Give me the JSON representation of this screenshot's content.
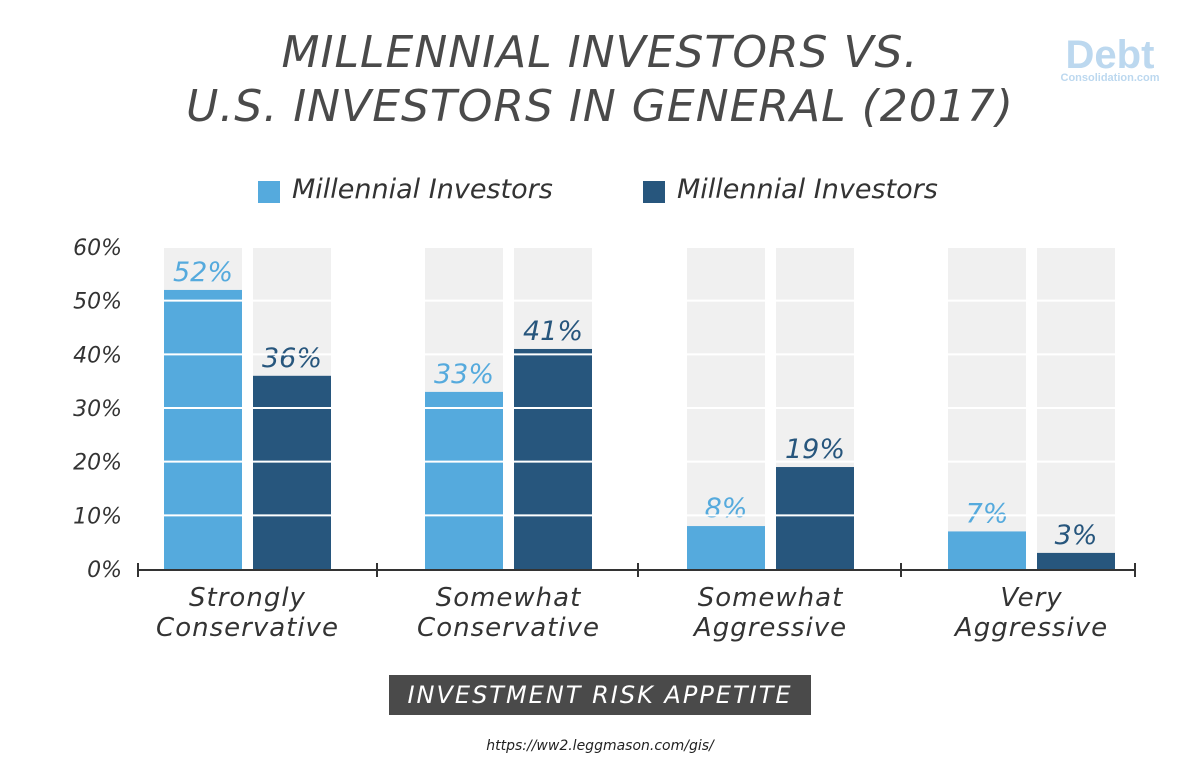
{
  "title_lines": [
    "MILLENNIAL INVESTORS VS.",
    "U.S. INVESTORS IN GENERAL (2017)"
  ],
  "logo": {
    "word": "Debt",
    "sub": "Consolidation.com"
  },
  "source": "https://ww2.leggmason.com/gis/",
  "colors": {
    "series1": "#55aadd",
    "series2": "#27567d",
    "background_column": "#f0f0f0",
    "axis": "#333333",
    "label1": "#55aadd",
    "label2": "#27567d"
  },
  "chart_data": {
    "type": "bar",
    "title": "MILLENNIAL INVESTORS VS. U.S. INVESTORS IN GENERAL (2017)",
    "xlabel": "INVESTMENT RISK APPETITE",
    "ylabel": "",
    "categories": [
      [
        "Strongly",
        "Conservative"
      ],
      [
        "Somewhat",
        "Conservative"
      ],
      [
        "Somewhat",
        "Aggressive"
      ],
      [
        "Very",
        "Aggressive"
      ]
    ],
    "series": [
      {
        "name": "Millennial Investors",
        "values": [
          52,
          33,
          8,
          7
        ],
        "labels": [
          "52%",
          "33%",
          "8%",
          "7%"
        ]
      },
      {
        "name": "Millennial Investors",
        "values": [
          36,
          41,
          19,
          3
        ],
        "labels": [
          "36%",
          "41%",
          "19%",
          "3%"
        ]
      }
    ],
    "ylim": [
      0,
      60
    ],
    "yticks": [
      0,
      10,
      20,
      30,
      40,
      50,
      60
    ],
    "ytick_labels": [
      "0%",
      "10%",
      "20%",
      "30%",
      "40%",
      "50%",
      "60%"
    ],
    "grid": true,
    "legend": "top-center"
  }
}
